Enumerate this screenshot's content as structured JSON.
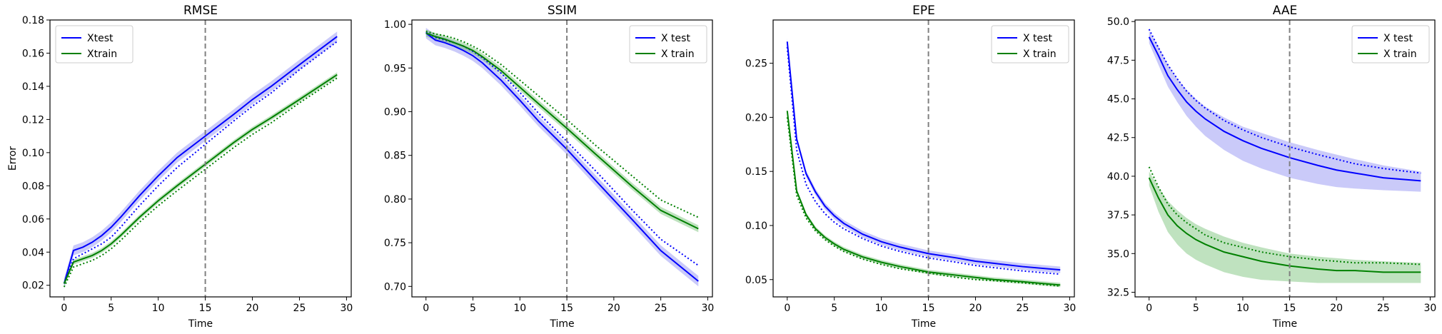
{
  "colors": {
    "test": "#0000ff",
    "train": "#008000",
    "band_test": "#7b7bf0",
    "band_train": "#5fb65f",
    "vline": "#808080"
  },
  "chart_data": [
    {
      "type": "line",
      "title": "RMSE",
      "xlabel": "Time",
      "ylabel": "Error",
      "xlim": [
        -1.5,
        30.5
      ],
      "ylim": [
        0.013,
        0.18
      ],
      "xticks": [
        0,
        5,
        10,
        15,
        20,
        25,
        30
      ],
      "yticks": [
        0.02,
        0.04,
        0.06,
        0.08,
        0.1,
        0.12,
        0.14,
        0.16,
        0.18
      ],
      "ytick_labels": [
        "0.02",
        "0.04",
        "0.06",
        "0.08",
        "0.10",
        "0.12",
        "0.14",
        "0.16",
        "0.18"
      ],
      "vline": 15,
      "legend_position": "upper left",
      "legend": [
        "Xtest",
        "Xtrain"
      ],
      "series": [
        {
          "name": "Xtest",
          "color": "test",
          "x": [
            0,
            1,
            2,
            3,
            4,
            5,
            6,
            8,
            10,
            12,
            15,
            18,
            20,
            22,
            25,
            29
          ],
          "mean": [
            0.021,
            0.041,
            0.043,
            0.046,
            0.05,
            0.055,
            0.061,
            0.074,
            0.086,
            0.097,
            0.11,
            0.123,
            0.132,
            0.14,
            0.153,
            0.17
          ],
          "dotted": [
            0.021,
            0.036,
            0.039,
            0.042,
            0.045,
            0.049,
            0.055,
            0.068,
            0.08,
            0.091,
            0.105,
            0.119,
            0.128,
            0.136,
            0.15,
            0.167
          ],
          "band": 0.003
        },
        {
          "name": "Xtrain",
          "color": "train",
          "x": [
            0,
            1,
            2,
            3,
            4,
            5,
            6,
            8,
            10,
            12,
            15,
            18,
            20,
            22,
            25,
            29
          ],
          "mean": [
            0.021,
            0.034,
            0.036,
            0.038,
            0.041,
            0.045,
            0.05,
            0.061,
            0.071,
            0.08,
            0.093,
            0.106,
            0.114,
            0.121,
            0.132,
            0.147
          ],
          "dotted": [
            0.019,
            0.031,
            0.033,
            0.035,
            0.038,
            0.042,
            0.047,
            0.058,
            0.068,
            0.077,
            0.09,
            0.103,
            0.111,
            0.118,
            0.13,
            0.145
          ],
          "band": 0.0015
        }
      ]
    },
    {
      "type": "line",
      "title": "SSIM",
      "xlabel": "Time",
      "ylabel": "",
      "xlim": [
        -1.5,
        30.5
      ],
      "ylim": [
        0.688,
        1.005
      ],
      "xticks": [
        0,
        5,
        10,
        15,
        20,
        25,
        30
      ],
      "yticks": [
        0.7,
        0.75,
        0.8,
        0.85,
        0.9,
        0.95,
        1.0
      ],
      "ytick_labels": [
        "0.70",
        "0.75",
        "0.80",
        "0.85",
        "0.90",
        "0.95",
        "1.00"
      ],
      "vline": 15,
      "legend_position": "upper right",
      "legend": [
        "X test",
        "X train"
      ],
      "series": [
        {
          "name": "X test",
          "color": "test",
          "x": [
            0,
            1,
            2,
            3,
            4,
            5,
            6,
            8,
            10,
            12,
            15,
            18,
            20,
            22,
            25,
            29
          ],
          "mean": [
            0.99,
            0.982,
            0.979,
            0.975,
            0.97,
            0.964,
            0.956,
            0.936,
            0.913,
            0.889,
            0.857,
            0.822,
            0.799,
            0.776,
            0.741,
            0.706
          ],
          "dotted": [
            0.991,
            0.985,
            0.982,
            0.979,
            0.975,
            0.969,
            0.962,
            0.944,
            0.922,
            0.898,
            0.866,
            0.833,
            0.81,
            0.787,
            0.754,
            0.724
          ],
          "band": 0.006
        },
        {
          "name": "X train",
          "color": "train",
          "x": [
            0,
            1,
            2,
            3,
            4,
            5,
            6,
            8,
            10,
            12,
            15,
            18,
            20,
            22,
            25,
            29
          ],
          "mean": [
            0.99,
            0.986,
            0.983,
            0.979,
            0.975,
            0.97,
            0.963,
            0.947,
            0.928,
            0.909,
            0.881,
            0.852,
            0.833,
            0.814,
            0.787,
            0.766
          ],
          "dotted": [
            0.992,
            0.989,
            0.987,
            0.984,
            0.98,
            0.975,
            0.969,
            0.954,
            0.936,
            0.918,
            0.891,
            0.862,
            0.844,
            0.826,
            0.799,
            0.779
          ],
          "band": 0.004
        }
      ]
    },
    {
      "type": "line",
      "title": "EPE",
      "xlabel": "Time",
      "ylabel": "",
      "xlim": [
        -1.5,
        30.5
      ],
      "ylim": [
        0.034,
        0.29
      ],
      "xticks": [
        0,
        5,
        10,
        15,
        20,
        25,
        30
      ],
      "yticks": [
        0.05,
        0.1,
        0.15,
        0.2,
        0.25
      ],
      "ytick_labels": [
        "0.05",
        "0.10",
        "0.15",
        "0.20",
        "0.25"
      ],
      "vline": 15,
      "legend_position": "upper right",
      "legend": [
        "X test",
        "X train"
      ],
      "series": [
        {
          "name": "X test",
          "color": "test",
          "x": [
            0,
            1,
            2,
            3,
            4,
            5,
            6,
            8,
            10,
            12,
            15,
            18,
            20,
            22,
            25,
            29
          ],
          "mean": [
            0.27,
            0.18,
            0.148,
            0.131,
            0.118,
            0.109,
            0.102,
            0.092,
            0.085,
            0.08,
            0.074,
            0.07,
            0.067,
            0.065,
            0.062,
            0.059
          ],
          "dotted": [
            0.265,
            0.17,
            0.138,
            0.122,
            0.111,
            0.103,
            0.097,
            0.088,
            0.081,
            0.076,
            0.07,
            0.066,
            0.063,
            0.061,
            0.058,
            0.055
          ],
          "band": 0.003
        },
        {
          "name": "X train",
          "color": "train",
          "x": [
            0,
            1,
            2,
            3,
            4,
            5,
            6,
            8,
            10,
            12,
            15,
            18,
            20,
            22,
            25,
            29
          ],
          "mean": [
            0.206,
            0.132,
            0.11,
            0.097,
            0.089,
            0.083,
            0.078,
            0.071,
            0.066,
            0.062,
            0.057,
            0.054,
            0.052,
            0.05,
            0.048,
            0.045
          ],
          "dotted": [
            0.2,
            0.128,
            0.107,
            0.095,
            0.087,
            0.081,
            0.076,
            0.069,
            0.064,
            0.06,
            0.056,
            0.052,
            0.05,
            0.049,
            0.047,
            0.044
          ],
          "band": 0.002
        }
      ]
    },
    {
      "type": "line",
      "title": "AAE",
      "xlabel": "Time",
      "ylabel": "",
      "xlim": [
        -1.5,
        30.5
      ],
      "ylim": [
        32.2,
        50.1
      ],
      "xticks": [
        0,
        5,
        10,
        15,
        20,
        25,
        30
      ],
      "yticks": [
        32.5,
        35.0,
        37.5,
        40.0,
        42.5,
        45.0,
        47.5,
        50.0
      ],
      "ytick_labels": [
        "32.5",
        "35.0",
        "37.5",
        "40.0",
        "42.5",
        "45.0",
        "47.5",
        "50.0"
      ],
      "vline": 15,
      "legend_position": "upper right",
      "legend": [
        "X test",
        "X train"
      ],
      "series": [
        {
          "name": "X test",
          "color": "test",
          "x": [
            0,
            1,
            2,
            3,
            4,
            5,
            6,
            8,
            10,
            12,
            15,
            18,
            20,
            22,
            25,
            29
          ],
          "mean": [
            49.0,
            47.8,
            46.5,
            45.6,
            44.8,
            44.2,
            43.7,
            42.9,
            42.3,
            41.8,
            41.2,
            40.7,
            40.4,
            40.2,
            39.9,
            39.7
          ],
          "dotted": [
            49.5,
            48.3,
            47.2,
            46.3,
            45.5,
            44.9,
            44.4,
            43.6,
            43.0,
            42.5,
            41.9,
            41.4,
            41.1,
            40.8,
            40.5,
            40.2
          ],
          "band_low": [
            48.6,
            47.2,
            45.8,
            44.8,
            43.9,
            43.2,
            42.6,
            41.7,
            41.0,
            40.5,
            39.9,
            39.5,
            39.3,
            39.2,
            39.1,
            39.0
          ],
          "band_high": [
            49.4,
            48.4,
            47.2,
            46.3,
            45.6,
            45.0,
            44.5,
            43.8,
            43.2,
            42.8,
            42.2,
            41.7,
            41.4,
            41.1,
            40.7,
            40.3
          ]
        },
        {
          "name": "X train",
          "color": "train",
          "x": [
            0,
            1,
            2,
            3,
            4,
            5,
            6,
            8,
            10,
            12,
            15,
            18,
            20,
            22,
            25,
            29
          ],
          "mean": [
            39.9,
            38.6,
            37.5,
            36.8,
            36.3,
            35.9,
            35.6,
            35.1,
            34.8,
            34.5,
            34.2,
            34.0,
            33.9,
            33.9,
            33.8,
            33.8
          ],
          "dotted": [
            40.6,
            39.3,
            38.2,
            37.5,
            37.0,
            36.6,
            36.2,
            35.7,
            35.4,
            35.1,
            34.8,
            34.6,
            34.5,
            34.4,
            34.4,
            34.3
          ],
          "band_low": [
            39.4,
            37.7,
            36.4,
            35.6,
            35.0,
            34.6,
            34.3,
            33.8,
            33.5,
            33.3,
            33.2,
            33.1,
            33.1,
            33.1,
            33.1,
            33.1
          ],
          "band_high": [
            40.3,
            39.3,
            38.4,
            37.8,
            37.3,
            36.9,
            36.6,
            36.1,
            35.7,
            35.4,
            35.0,
            34.8,
            34.7,
            34.6,
            34.5,
            34.4
          ]
        }
      ]
    }
  ]
}
